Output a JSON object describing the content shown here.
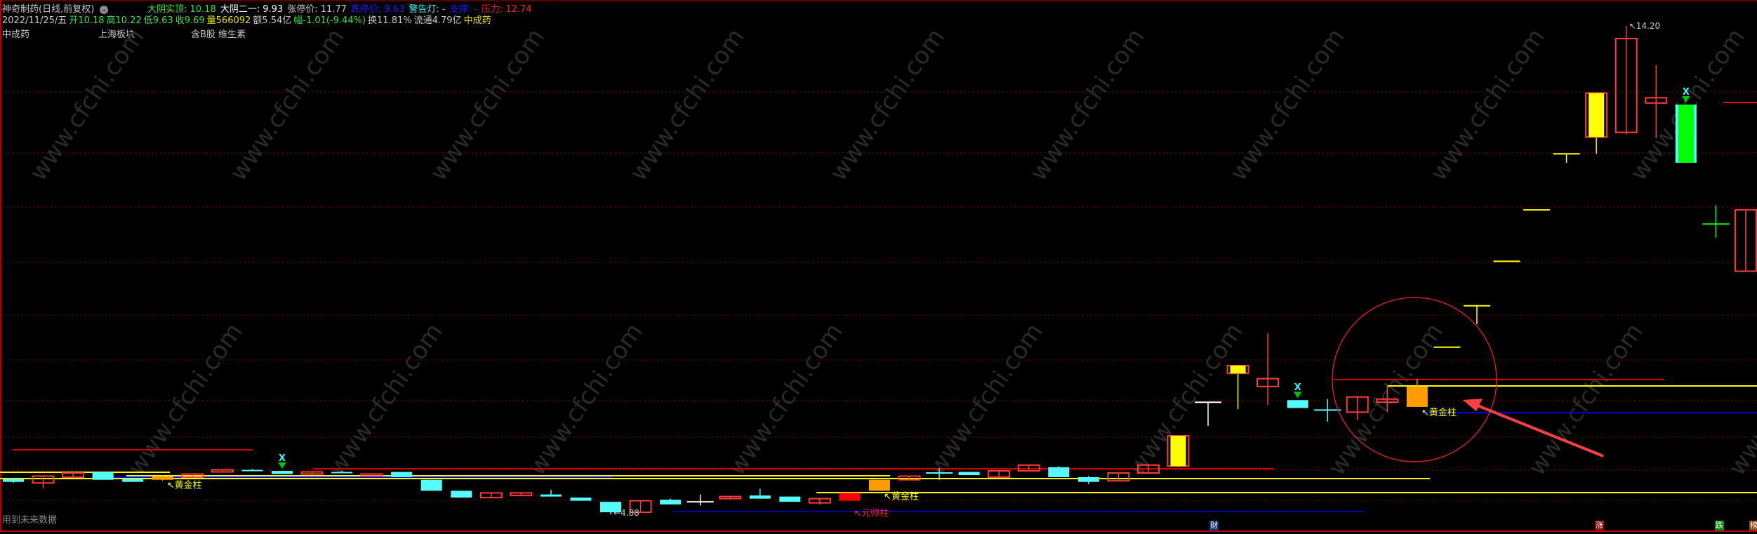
{
  "header": {
    "title": "神奇制药(日线,前复权)",
    "menu_icon": "chevron-down-circle-icon",
    "indicators": [
      {
        "label": "大阴实顶:",
        "value": "10.18",
        "color": "#3ce03c"
      },
      {
        "label": "大阴二一:",
        "value": "9.93",
        "color": "#ffffff"
      },
      {
        "label": "张停价:",
        "value": "11.77",
        "color": "#c8c8c8"
      },
      {
        "label": "跌停价:",
        "value": "9.63",
        "color": "#1e1eff"
      },
      {
        "label": "警告灯:",
        "value": "-",
        "color": "#3cf0f0"
      },
      {
        "label": "支撑:",
        "value": "-",
        "color": "#1e1eff"
      },
      {
        "label": "压力:",
        "value": "12.74",
        "color": "#ff2020"
      }
    ],
    "quote": [
      {
        "text": "2022/11/25/五",
        "color": "#c8c8c8"
      },
      {
        "text": "开10.18",
        "color": "#3ce03c"
      },
      {
        "text": "高10.22",
        "color": "#3ce03c"
      },
      {
        "text": "低9.63",
        "color": "#3ce03c"
      },
      {
        "text": "收9.69",
        "color": "#3ce03c"
      },
      {
        "text": "量566092",
        "color": "#e0e000"
      },
      {
        "text": "额5.54亿",
        "color": "#c8c8c8"
      },
      {
        "text": "幅-1.01(-9.44%)",
        "color": "#3ce03c"
      },
      {
        "text": "换11.81%",
        "color": "#c8c8c8"
      },
      {
        "text": "流通4.79亿",
        "color": "#c8c8c8"
      },
      {
        "text": "中成药",
        "color": "#e0e000"
      }
    ],
    "sectors": [
      "中成药",
      "上海板块",
      "含B股 维生素"
    ]
  },
  "footer": {
    "note": "用到未来数据",
    "tags": [
      {
        "text": "财",
        "bg": "#0a3a7a"
      },
      {
        "text": "涨",
        "bg": "#8a0000"
      },
      {
        "text": "跌",
        "bg": "#0a8a0a"
      },
      {
        "text": "榜",
        "bg": "#8a4a0a"
      }
    ]
  },
  "watermark": "www.cfchi.com",
  "chart_data": {
    "type": "candlestick",
    "period": "日线",
    "adjust": "前复权",
    "price_range": [
      4.88,
      14.2
    ],
    "labels": {
      "high": "14.20",
      "low": "4.88"
    },
    "colors": {
      "up": "#ff3c3c",
      "down": "#54fcfc",
      "gold": "#ff9c00",
      "limit": "#ffff00",
      "red": "#ff0000",
      "green": "#00ff00"
    },
    "candles": [
      [
        5.56,
        5.58,
        5.48,
        5.5,
        "down"
      ],
      [
        5.48,
        5.61,
        5.37,
        5.61,
        "up"
      ],
      [
        5.59,
        5.67,
        5.59,
        5.67,
        "up"
      ],
      [
        5.69,
        5.69,
        5.54,
        5.54,
        "down"
      ],
      [
        5.56,
        5.58,
        5.5,
        5.5,
        "down"
      ],
      [
        5.54,
        5.61,
        5.52,
        5.61,
        "gold"
      ],
      [
        5.59,
        5.65,
        5.59,
        5.65,
        "up"
      ],
      [
        5.69,
        5.73,
        5.69,
        5.73,
        "up"
      ],
      [
        5.73,
        5.75,
        5.71,
        5.72,
        "down"
      ],
      [
        5.71,
        5.71,
        5.65,
        5.65,
        "down"
      ],
      [
        5.65,
        5.69,
        5.65,
        5.69,
        "up"
      ],
      [
        5.69,
        5.71,
        5.67,
        5.68,
        "down"
      ],
      [
        5.61,
        5.65,
        5.61,
        5.65,
        "up"
      ],
      [
        5.69,
        5.69,
        5.59,
        5.59,
        "down"
      ],
      [
        5.54,
        5.54,
        5.33,
        5.33,
        "down"
      ],
      [
        5.33,
        5.33,
        5.2,
        5.2,
        "down"
      ],
      [
        5.2,
        5.29,
        5.2,
        5.29,
        "up"
      ],
      [
        5.24,
        5.29,
        5.24,
        5.29,
        "up"
      ],
      [
        5.26,
        5.35,
        5.22,
        5.22,
        "down"
      ],
      [
        5.2,
        5.2,
        5.14,
        5.14,
        "down"
      ],
      [
        5.12,
        5.12,
        4.88,
        4.92,
        "down"
      ],
      [
        4.92,
        5.14,
        4.92,
        5.14,
        "up"
      ],
      [
        5.16,
        5.18,
        5.07,
        5.07,
        "down"
      ],
      [
        5.12,
        5.26,
        5.05,
        5.12,
        "doji"
      ],
      [
        5.18,
        5.22,
        5.18,
        5.22,
        "up"
      ],
      [
        5.24,
        5.37,
        5.18,
        5.18,
        "down"
      ],
      [
        5.22,
        5.22,
        5.12,
        5.12,
        "down"
      ],
      [
        5.1,
        5.18,
        5.07,
        5.18,
        "up"
      ],
      [
        5.14,
        5.29,
        5.14,
        5.29,
        "red"
      ],
      [
        5.33,
        5.54,
        5.33,
        5.54,
        "gold"
      ],
      [
        5.54,
        5.61,
        5.54,
        5.61,
        "up"
      ],
      [
        5.67,
        5.76,
        5.54,
        5.67,
        "cross"
      ],
      [
        5.69,
        5.69,
        5.63,
        5.63,
        "down"
      ],
      [
        5.59,
        5.71,
        5.59,
        5.71,
        "up"
      ],
      [
        5.71,
        5.82,
        5.71,
        5.82,
        "up"
      ],
      [
        5.78,
        5.8,
        5.59,
        5.59,
        "down"
      ],
      [
        5.59,
        5.61,
        5.46,
        5.5,
        "down"
      ],
      [
        5.52,
        5.67,
        5.52,
        5.67,
        "up"
      ],
      [
        5.67,
        5.84,
        5.65,
        5.82,
        "up"
      ],
      [
        5.8,
        6.38,
        5.78,
        6.38,
        "limit"
      ],
      [
        7.02,
        7.02,
        6.57,
        7.02,
        "doji"
      ],
      [
        7.57,
        7.72,
        6.89,
        7.72,
        "limit"
      ],
      [
        7.32,
        8.34,
        6.97,
        7.47,
        "up"
      ],
      [
        7.06,
        7.06,
        6.91,
        6.91,
        "down"
      ],
      [
        6.87,
        7.08,
        6.65,
        6.87,
        "cross"
      ],
      [
        6.83,
        7.12,
        6.68,
        7.12,
        "up"
      ],
      [
        7.02,
        7.34,
        6.83,
        7.08,
        "up"
      ],
      [
        6.93,
        7.47,
        6.93,
        7.32,
        "gold"
      ],
      [
        8.07,
        8.07,
        8.07,
        8.07,
        "flat"
      ],
      [
        8.86,
        8.86,
        8.51,
        8.86,
        "flat"
      ],
      [
        9.71,
        9.71,
        9.71,
        9.71,
        "flat"
      ],
      [
        10.69,
        10.69,
        10.69,
        10.69,
        "flat"
      ],
      [
        11.76,
        11.76,
        11.59,
        11.76,
        "flat"
      ],
      [
        12.08,
        12.92,
        11.76,
        12.92,
        "limit"
      ],
      [
        12.17,
        14.2,
        12.13,
        13.96,
        "up"
      ],
      [
        12.73,
        13.45,
        12.06,
        12.83,
        "up"
      ],
      [
        12.7,
        12.7,
        11.59,
        11.59,
        "green"
      ],
      [
        10.42,
        10.78,
        10.16,
        10.42,
        "gcross"
      ],
      [
        9.52,
        10.69,
        9.52,
        10.69,
        "up"
      ]
    ],
    "signal_markers": [
      9,
      43,
      56
    ],
    "annotations": [
      {
        "candle": 5,
        "text": "↖黄金柱",
        "color": "#ffff00",
        "pos": "below-right"
      },
      {
        "candle": 29,
        "text": "↖黄金柱",
        "color": "#ffff00",
        "pos": "below-right"
      },
      {
        "candle": 28,
        "text": "↖元帅柱",
        "color": "#ff2020",
        "pos": "below-right"
      },
      {
        "candle": 47,
        "text": "↖黄金柱",
        "color": "#ffff00",
        "pos": "below-right"
      }
    ]
  }
}
